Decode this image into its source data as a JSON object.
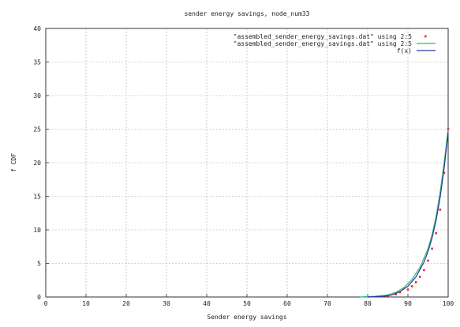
{
  "chart_data": {
    "type": "line",
    "title": "sender energy savings, node_num33",
    "xlabel": "Sender energy savings",
    "ylabel": "f CDF",
    "xlim": [
      0,
      100
    ],
    "ylim": [
      0,
      40
    ],
    "xticks": [
      "0",
      "10",
      "20",
      "30",
      "40",
      "50",
      "60",
      "70",
      "80",
      "90",
      "100"
    ],
    "yticks": [
      "0",
      "5",
      "10",
      "15",
      "20",
      "25",
      "30",
      "35",
      "40"
    ],
    "grid": true,
    "legend_position": "top-right",
    "series": [
      {
        "name": "\"assembled_sender_energy_savings.dat\" using 2:5",
        "style": "points",
        "color": "#e0302a",
        "points": [
          [
            85,
            0.2
          ],
          [
            87,
            0.4
          ],
          [
            88,
            0.7
          ],
          [
            90,
            1.1
          ],
          [
            91,
            1.6
          ],
          [
            92,
            2.2
          ],
          [
            93,
            3.0
          ],
          [
            94,
            4.0
          ],
          [
            95,
            5.4
          ],
          [
            96,
            7.2
          ],
          [
            97,
            9.5
          ],
          [
            98,
            13.0
          ],
          [
            99,
            18.5
          ],
          [
            100,
            25.0
          ]
        ]
      },
      {
        "name": "\"assembled_sender_energy_savings.dat\" using 2:5",
        "style": "line",
        "color": "#2bb673",
        "points": [
          [
            78,
            0.0
          ],
          [
            82,
            0.1
          ],
          [
            85,
            0.3
          ],
          [
            87,
            0.7
          ],
          [
            89,
            1.4
          ],
          [
            91,
            2.6
          ],
          [
            93,
            4.4
          ],
          [
            95,
            7.2
          ],
          [
            96,
            9.3
          ],
          [
            97,
            12.0
          ],
          [
            98,
            15.6
          ],
          [
            99,
            20.0
          ],
          [
            100,
            25.0
          ]
        ]
      },
      {
        "name": "f(x)",
        "style": "line",
        "color": "#2a3a9a",
        "points": [
          [
            80,
            0.0
          ],
          [
            84,
            0.1
          ],
          [
            86,
            0.3
          ],
          [
            88,
            0.8
          ],
          [
            90,
            1.6
          ],
          [
            92,
            3.0
          ],
          [
            94,
            5.2
          ],
          [
            95,
            6.8
          ],
          [
            96,
            8.8
          ],
          [
            97,
            11.4
          ],
          [
            98,
            14.8
          ],
          [
            99,
            19.2
          ],
          [
            100,
            24.5
          ]
        ]
      }
    ]
  }
}
